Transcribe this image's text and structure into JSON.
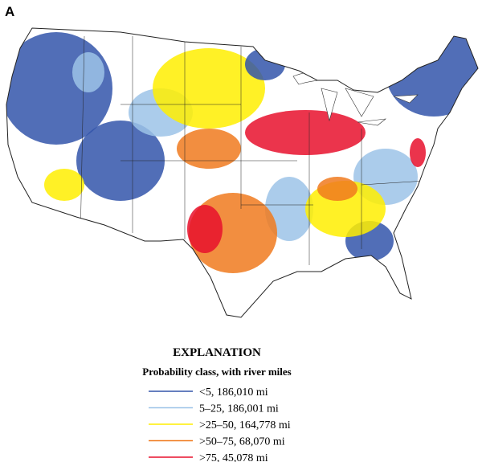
{
  "panel_label": "A",
  "legend": {
    "title": "EXPLANATION",
    "subtitle": "Probability class, with river miles",
    "items": [
      {
        "label": "<5, 186,010 mi",
        "color": "#3355aa"
      },
      {
        "label": "5–25, 186,001 mi",
        "color": "#9cc3e8"
      },
      {
        "label": ">25–50, 164,778 mi",
        "color": "#ffee00"
      },
      {
        "label": ">50–75, 68,070 mi",
        "color": "#f07a1e"
      },
      {
        "label": ">75, 45,078 mi",
        "color": "#e8112d"
      }
    ]
  }
}
